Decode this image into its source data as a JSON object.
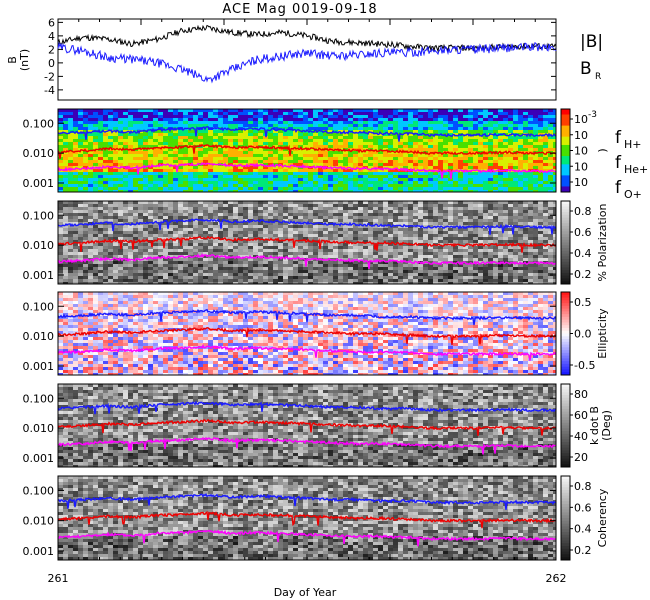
{
  "title": "ACE Mag 0019-09-18",
  "xlabel": "Day of Year",
  "x_ticks": [
    "261",
    "262"
  ],
  "colors": {
    "black_line": "#000000",
    "blue": "#1a1aff",
    "red": "#ee0000",
    "magenta": "#ff00ff"
  },
  "panels": [
    {
      "kind": "line",
      "ylabel": "B",
      "ylabel_unit": "(nT)",
      "y_ticks": [
        "6",
        "4",
        "2",
        "0",
        "-2",
        "-4"
      ],
      "ylim": [
        -5.5,
        6.5
      ],
      "legend": [
        "|B|",
        "B"
      ],
      "legend_sub": "R"
    },
    {
      "kind": "spectrogram",
      "colormap": "rainbow",
      "y_ticks": [
        "0.100",
        "0.010",
        "0.001"
      ],
      "cbar_ticks": [
        "10",
        "10",
        "10",
        "10",
        "10"
      ],
      "cbar_sup": [
        "-3",
        "",
        "",
        "",
        ""
      ],
      "cbar_label": ")",
      "legend": [
        "f",
        "f",
        "f"
      ],
      "legend_sub": [
        "H+",
        "He+",
        "O+"
      ]
    },
    {
      "kind": "spectrogram",
      "colormap": "gray",
      "y_ticks": [
        "0.100",
        "0.010",
        "0.001"
      ],
      "cbar_ticks": [
        "0.8",
        "0.6",
        "0.4",
        "0.2"
      ],
      "cbar_label": "% Polarization"
    },
    {
      "kind": "spectrogram",
      "colormap": "bwr",
      "y_ticks": [
        "0.100",
        "0.010",
        "0.001"
      ],
      "cbar_ticks": [
        "0.5",
        "0.0",
        "-0.5"
      ],
      "cbar_label": "Ellipticity"
    },
    {
      "kind": "spectrogram",
      "colormap": "gray",
      "y_ticks": [
        "0.100",
        "0.010",
        "0.001"
      ],
      "cbar_ticks": [
        "80",
        "60",
        "40",
        "20"
      ],
      "cbar_label": "k dot B",
      "cbar_label2": "(Deg)"
    },
    {
      "kind": "spectrogram",
      "colormap": "gray",
      "y_ticks": [
        "0.100",
        "0.010",
        "0.001"
      ],
      "cbar_ticks": [
        "0.8",
        "0.6",
        "0.4",
        "0.2"
      ],
      "cbar_label": "Coherency"
    }
  ],
  "chart_data": {
    "type": "line",
    "title": "ACE Mag 0019-09-18",
    "xlabel": "Day of Year",
    "ylabel": "B (nT)",
    "xlim": [
      261,
      262
    ],
    "ylim": [
      -5.5,
      6.5
    ],
    "x": [
      261.0,
      261.05,
      261.1,
      261.15,
      261.2,
      261.25,
      261.3,
      261.35,
      261.4,
      261.45,
      261.5,
      261.55,
      261.6,
      261.65,
      261.7,
      261.75,
      261.8,
      261.85,
      261.9,
      261.95,
      262.0
    ],
    "series": [
      {
        "name": "|B|",
        "values": [
          3.0,
          3.8,
          3.5,
          2.8,
          3.5,
          4.8,
          5.2,
          4.5,
          4.2,
          4.5,
          4.0,
          3.2,
          3.0,
          2.8,
          2.5,
          2.2,
          2.2,
          2.2,
          2.4,
          2.5,
          2.4
        ]
      },
      {
        "name": "B_R",
        "values": [
          2.3,
          1.8,
          0.8,
          0.5,
          0.0,
          -1.0,
          -2.5,
          -1.0,
          0.5,
          1.0,
          1.5,
          1.0,
          1.2,
          1.5,
          1.5,
          1.8,
          2.0,
          2.0,
          2.2,
          2.4,
          2.2
        ]
      },
      {
        "name": "f H+",
        "values": [
          0.045,
          0.05,
          0.055,
          0.05,
          0.06,
          0.065,
          0.07,
          0.06,
          0.065,
          0.06,
          0.055,
          0.05,
          0.05,
          0.045,
          0.045,
          0.04,
          0.04,
          0.04,
          0.042,
          0.04,
          0.04
        ]
      },
      {
        "name": "f He+",
        "values": [
          0.011,
          0.012,
          0.014,
          0.013,
          0.015,
          0.016,
          0.018,
          0.015,
          0.016,
          0.015,
          0.014,
          0.013,
          0.012,
          0.012,
          0.011,
          0.01,
          0.01,
          0.01,
          0.0105,
          0.01,
          0.01
        ]
      },
      {
        "name": "f O+",
        "values": [
          0.0028,
          0.003,
          0.0035,
          0.0032,
          0.0038,
          0.004,
          0.0045,
          0.0038,
          0.004,
          0.0038,
          0.0035,
          0.0032,
          0.003,
          0.003,
          0.0028,
          0.0025,
          0.0025,
          0.0025,
          0.0026,
          0.0025,
          0.0025
        ]
      }
    ]
  }
}
